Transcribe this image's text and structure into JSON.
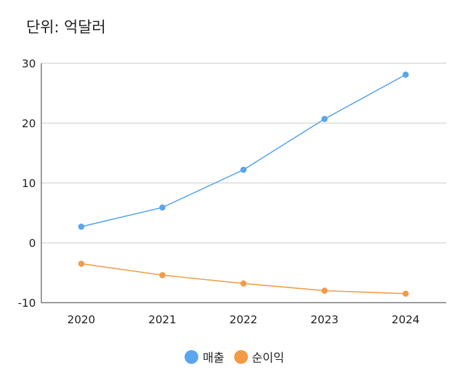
{
  "unit_label": "단위: 억달러",
  "chart_data": {
    "type": "line",
    "categories": [
      "2020",
      "2021",
      "2022",
      "2023",
      "2024"
    ],
    "series": [
      {
        "name": "매출",
        "values": [
          2.7,
          5.9,
          12.2,
          20.7,
          28.1
        ],
        "color": "#5AA5EE"
      },
      {
        "name": "순이익",
        "values": [
          -3.5,
          -5.4,
          -6.8,
          -8.0,
          -8.5
        ],
        "color": "#F39A47"
      }
    ],
    "ylim": [
      -10,
      30
    ],
    "yticks": [
      30,
      20,
      10,
      0,
      -10
    ],
    "grid": true,
    "legend_position": "bottom"
  }
}
